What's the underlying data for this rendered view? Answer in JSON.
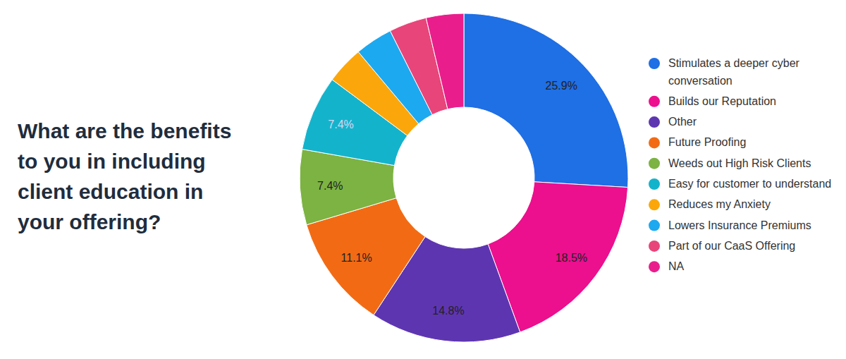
{
  "chart_data": {
    "type": "pie",
    "title": "What are the benefits to you in including client education in your offering?",
    "categories": [
      "Stimulates a deeper cyber conversation",
      "Builds our Reputation",
      "Other",
      "Future Proofing",
      "Weeds out High Risk Clients",
      "Easy for customer to understand",
      "Reduces my Anxiety",
      "Lowers Insurance Premiums",
      "Part of our CaaS Offering",
      "NA"
    ],
    "values": [
      25.9,
      18.5,
      14.8,
      11.1,
      7.4,
      7.4,
      3.7,
      3.7,
      3.7,
      3.7
    ],
    "value_labels": [
      "25.9%",
      "18.5%",
      "14.8%",
      "11.1%",
      "7.4%",
      "7.4%",
      null,
      null,
      null,
      null
    ],
    "colors": [
      "#1f6fe5",
      "#ec0f8e",
      "#5e35b1",
      "#f26b14",
      "#7cb342",
      "#14b3cc",
      "#fba70b",
      "#1da9ef",
      "#e8457a",
      "#e91e8c"
    ],
    "data_labels": true,
    "legend": "right"
  }
}
